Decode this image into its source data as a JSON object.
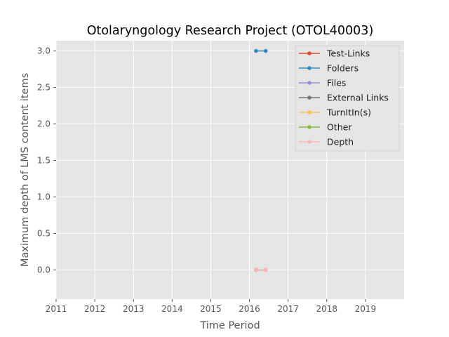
{
  "chart_data": {
    "type": "line",
    "title": "Otolaryngology Research Project (OTOL40003)",
    "xlabel": "Time Period",
    "ylabel": "Maximum depth of LMS content items",
    "xlim": [
      2011,
      2020
    ],
    "ylim": [
      -0.4,
      3.14
    ],
    "x_ticks": [
      "2011",
      "2012",
      "2013",
      "2014",
      "2015",
      "2016",
      "2017",
      "2018",
      "2019"
    ],
    "y_ticks": [
      "0.0",
      "0.5",
      "1.0",
      "1.5",
      "2.0",
      "2.5",
      "3.0"
    ],
    "grid": true,
    "legend_position": "top-right",
    "series": [
      {
        "name": "Test-Links",
        "color": "#e24a33",
        "x": [
          2016.17,
          2016.42
        ],
        "y": [
          0,
          0
        ]
      },
      {
        "name": "Folders",
        "color": "#348abd",
        "x": [
          2016.17,
          2016.42
        ],
        "y": [
          3,
          3
        ]
      },
      {
        "name": "Files",
        "color": "#988ed5",
        "x": [
          2016.17,
          2016.42
        ],
        "y": [
          0,
          0
        ]
      },
      {
        "name": "External Links",
        "color": "#777777",
        "x": [
          2016.17,
          2016.42
        ],
        "y": [
          0,
          0
        ]
      },
      {
        "name": "TurnItIn(s)",
        "color": "#fbc15e",
        "x": [
          2016.17,
          2016.42
        ],
        "y": [
          0,
          0
        ]
      },
      {
        "name": "Other",
        "color": "#8eba42",
        "x": [
          2016.17,
          2016.42
        ],
        "y": [
          0,
          0
        ]
      },
      {
        "name": "Depth",
        "color": "#ffb5b8",
        "x": [
          2016.17,
          2016.42
        ],
        "y": [
          0,
          0
        ]
      }
    ]
  }
}
